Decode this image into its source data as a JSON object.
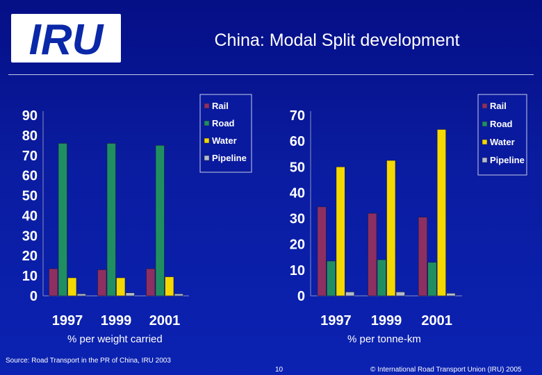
{
  "slide": {
    "logo_text": "IRU",
    "title": "China: Modal Split development",
    "source": "Source: Road Transport in the PR of China, IRU 2003",
    "page_number": "10",
    "copyright": "© International Road Transport Union (IRU) 2005"
  },
  "colors": {
    "Rail": "#8e2f62",
    "Road": "#1f8f62",
    "Water": "#f4d800",
    "Pipeline": "#b4bccb"
  },
  "chart_data": [
    {
      "type": "bar",
      "caption": "% per weight carried",
      "categories": [
        "1997",
        "1999",
        "2001"
      ],
      "series": [
        {
          "name": "Rail",
          "values": [
            13.5,
            13,
            13.5
          ]
        },
        {
          "name": "Road",
          "values": [
            76,
            76,
            75
          ]
        },
        {
          "name": "Water",
          "values": [
            9,
            9,
            9.5
          ]
        },
        {
          "name": "Pipeline",
          "values": [
            1,
            1.5,
            1
          ]
        }
      ],
      "ylim": [
        0,
        90
      ],
      "yticks": [
        0,
        10,
        20,
        30,
        40,
        50,
        60,
        70,
        80,
        90
      ],
      "legend": "top-right",
      "grid": false
    },
    {
      "type": "bar",
      "caption": "% per tonne-km",
      "categories": [
        "1997",
        "1999",
        "2001"
      ],
      "series": [
        {
          "name": "Rail",
          "values": [
            34.5,
            32,
            30.5
          ]
        },
        {
          "name": "Road",
          "values": [
            13.5,
            14,
            13
          ]
        },
        {
          "name": "Water",
          "values": [
            50,
            52.5,
            64.5
          ]
        },
        {
          "name": "Pipeline",
          "values": [
            1.5,
            1.5,
            1
          ]
        }
      ],
      "ylim": [
        0,
        70
      ],
      "yticks": [
        0,
        10,
        20,
        30,
        40,
        50,
        60,
        70
      ],
      "legend": "top-right",
      "grid": false
    }
  ]
}
